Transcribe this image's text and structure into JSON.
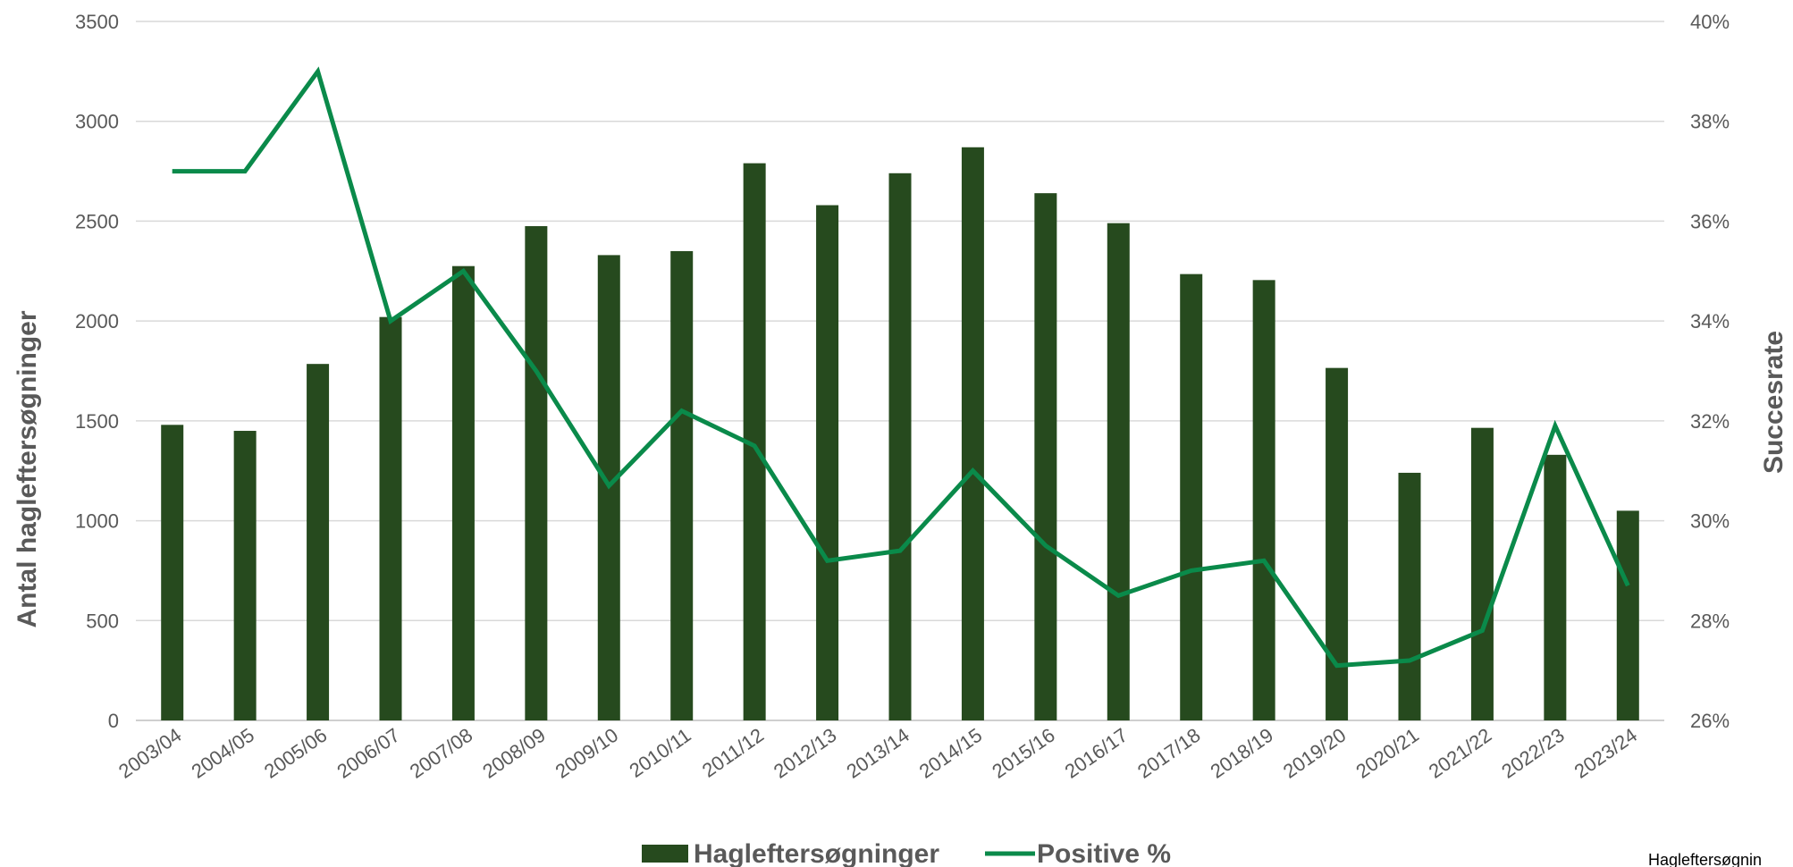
{
  "chart_data": {
    "type": "bar",
    "categories": [
      "2003/04",
      "2004/05",
      "2005/06",
      "2006/07",
      "2007/08",
      "2008/09",
      "2009/10",
      "2010/11",
      "2011/12",
      "2012/13",
      "2013/14",
      "2014/15",
      "2015/16",
      "2016/17",
      "2017/18",
      "2018/19",
      "2019/20",
      "2020/21",
      "2021/22",
      "2022/23",
      "2023/24"
    ],
    "series": [
      {
        "name": "Hagleftersøgninger",
        "type": "bar",
        "axis": "left",
        "color": "#264a1e",
        "values": [
          1480,
          1450,
          1785,
          2020,
          2275,
          2475,
          2330,
          2350,
          2790,
          2580,
          2740,
          2870,
          2640,
          2490,
          2235,
          2205,
          1765,
          1240,
          1465,
          1330,
          1050
        ]
      },
      {
        "name": "Positive %",
        "type": "line",
        "axis": "right",
        "color": "#0a8a4a",
        "values": [
          37.0,
          37.0,
          39.0,
          34.0,
          35.0,
          33.0,
          30.7,
          32.2,
          31.5,
          29.2,
          29.4,
          31.0,
          29.5,
          28.5,
          29.0,
          29.2,
          27.1,
          27.2,
          27.8,
          31.9,
          28.7
        ]
      }
    ],
    "ylabel": "Antal hagleftersøgninger",
    "ylabel_right": "Succesrate",
    "ylim": [
      0,
      3500
    ],
    "yticks": [
      "0",
      "500",
      "1000",
      "1500",
      "2000",
      "2500",
      "3000",
      "3500"
    ],
    "ylim_right": [
      26,
      40
    ],
    "yticks_right": [
      "26%",
      "28%",
      "30%",
      "32%",
      "34%",
      "36%",
      "38%",
      "40%"
    ],
    "grid": true,
    "legend": "bottom-center",
    "footer_note": "Hagleftersøgnin"
  }
}
